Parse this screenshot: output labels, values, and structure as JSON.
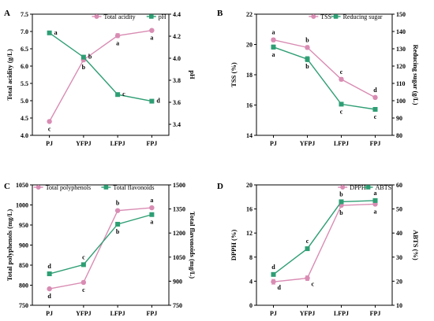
{
  "colors": {
    "pink": "#d98cb3",
    "green": "#2e9e74",
    "axis": "#000000"
  },
  "chart_data": [
    {
      "panel": "A",
      "type": "line",
      "categories": [
        "PJ",
        "YFPJ",
        "LFPJ",
        "FPJ"
      ],
      "xlabel": "",
      "left": {
        "label": "Total acidity (g/L)",
        "lim": [
          4.0,
          7.5
        ],
        "ticks": [
          4.0,
          4.5,
          5.0,
          5.5,
          6.0,
          6.5,
          7.0,
          7.5
        ]
      },
      "right": {
        "label": "pH",
        "lim": [
          3.3,
          4.4
        ],
        "ticks": [
          3.4,
          3.6,
          3.8,
          4.0,
          4.2,
          4.4
        ]
      },
      "legend": "top-right",
      "series": [
        {
          "name": "Total acidity",
          "axis": "left",
          "marker": "circle",
          "color": "#d98cb3",
          "values": [
            4.4,
            6.18,
            6.88,
            7.03
          ],
          "err": [
            0.03,
            0.05,
            0.06,
            0.03
          ],
          "sig": [
            "c",
            "b",
            "a",
            "a"
          ],
          "sig_pos": [
            "below",
            "below",
            "below",
            "below"
          ]
        },
        {
          "name": "pH",
          "axis": "right",
          "marker": "square",
          "color": "#2e9e74",
          "values": [
            4.23,
            4.01,
            3.67,
            3.61
          ],
          "err": [
            0.015,
            0.01,
            0.01,
            0.008
          ],
          "sig": [
            "a",
            "b",
            "c",
            "d"
          ],
          "sig_pos": [
            "right",
            "right",
            "right",
            "right"
          ]
        }
      ]
    },
    {
      "panel": "B",
      "type": "line",
      "categories": [
        "PJ",
        "YFPJ",
        "LFPJ",
        "FPJ"
      ],
      "xlabel": "",
      "left": {
        "label": "TSS (%)",
        "lim": [
          14,
          22
        ],
        "ticks": [
          14,
          16,
          18,
          20,
          22
        ]
      },
      "right": {
        "label": "Reducing sugar (g/L)",
        "lim": [
          80,
          150
        ],
        "ticks": [
          80,
          90,
          100,
          110,
          120,
          130,
          140,
          150
        ]
      },
      "legend": "top-right",
      "series": [
        {
          "name": "TSS",
          "axis": "left",
          "marker": "circle",
          "color": "#d98cb3",
          "values": [
            20.3,
            19.8,
            17.7,
            16.5
          ],
          "err": [
            0.12,
            0.12,
            0.12,
            0.1
          ],
          "sig": [
            "a",
            "b",
            "c",
            "d"
          ],
          "sig_pos": [
            "above",
            "above",
            "above",
            "above"
          ]
        },
        {
          "name": "Reducing sugar",
          "axis": "right",
          "marker": "square",
          "color": "#2e9e74",
          "values": [
            131,
            124,
            98,
            95
          ],
          "err": [
            1.2,
            1.5,
            1.0,
            0.8
          ],
          "sig": [
            "a",
            "b",
            "c",
            "c"
          ],
          "sig_pos": [
            "below",
            "below",
            "below",
            "below"
          ]
        }
      ]
    },
    {
      "panel": "C",
      "type": "line",
      "categories": [
        "PJ",
        "YFPJ",
        "LFPJ",
        "FPJ"
      ],
      "xlabel": "",
      "left": {
        "label": "Total polyphenols (mg/L)",
        "lim": [
          750,
          1050
        ],
        "ticks": [
          750,
          800,
          850,
          900,
          950,
          1000,
          1050
        ]
      },
      "right": {
        "label": "Total flavonoids (mg/L)",
        "lim": [
          750,
          1500
        ],
        "ticks": [
          750,
          900,
          1050,
          1200,
          1350,
          1500
        ]
      },
      "legend": "top-right",
      "series": [
        {
          "name": "Total polyphenols",
          "axis": "left",
          "marker": "circle",
          "color": "#d98cb3",
          "values": [
            791,
            807,
            986,
            993
          ],
          "err": [
            3,
            3,
            3,
            3
          ],
          "sig": [
            "d",
            "c",
            "b",
            "a"
          ],
          "sig_pos": [
            "below",
            "below",
            "above",
            "above"
          ]
        },
        {
          "name": "Total flavonoids",
          "axis": "right",
          "marker": "square",
          "color": "#2e9e74",
          "values": [
            946,
            1003,
            1255,
            1315
          ],
          "err": [
            6,
            6,
            8,
            8
          ],
          "sig": [
            "d",
            "c",
            "b",
            "a"
          ],
          "sig_pos": [
            "above",
            "above",
            "below",
            "below"
          ]
        }
      ]
    },
    {
      "panel": "D",
      "type": "line",
      "categories": [
        "PJ",
        "YFPJ",
        "LFPJ",
        "FPJ"
      ],
      "xlabel": "",
      "left": {
        "label": "DPPH (%)",
        "lim": [
          0,
          20
        ],
        "ticks": [
          0,
          4,
          8,
          12,
          16,
          20
        ]
      },
      "right": {
        "label": "ABTS (%)",
        "lim": [
          10,
          60
        ],
        "ticks": [
          10,
          20,
          30,
          40,
          50,
          60
        ]
      },
      "legend": "top-right",
      "series": [
        {
          "name": "DPPH",
          "axis": "left",
          "marker": "circle",
          "color": "#d98cb3",
          "values": [
            3.9,
            4.5,
            16.6,
            16.8
          ],
          "err": [
            0.4,
            0.4,
            0.15,
            0.15
          ],
          "sig": [
            "d",
            "c",
            "b",
            "a"
          ],
          "sig_pos": [
            "below-right",
            "below-right",
            "below",
            "below"
          ]
        },
        {
          "name": "ABTS",
          "axis": "right",
          "marker": "square",
          "color": "#2e9e74",
          "values": [
            22.8,
            33.5,
            53.0,
            53.5
          ],
          "err": [
            0.5,
            0.5,
            0.4,
            0.4
          ],
          "sig": [
            "d",
            "c",
            "b",
            "a"
          ],
          "sig_pos": [
            "above",
            "above",
            "above",
            "above"
          ]
        }
      ]
    }
  ]
}
